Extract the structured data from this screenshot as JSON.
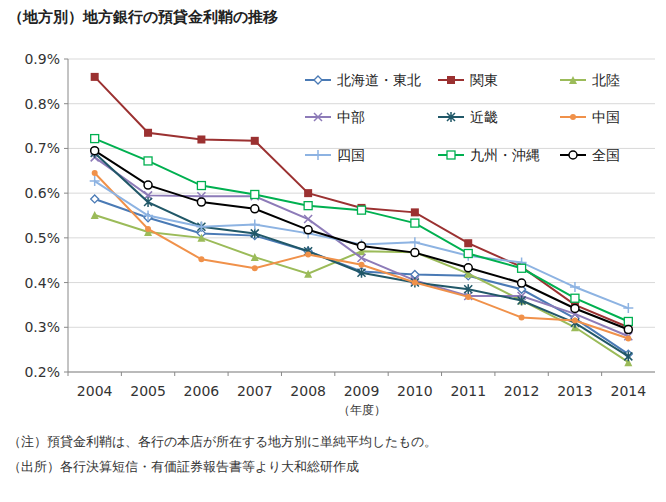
{
  "chart_data": {
    "type": "line",
    "title": "（地方別）地方銀行の預貸金利鞘の推移",
    "x_label": "（年度）",
    "notes": [
      "（注）預貸金利鞘は、各行の本店が所在する地方別に単純平均したもの。",
      "（出所）各行決算短信・有価証券報告書等より大和総研作成"
    ],
    "categories": [
      "2004",
      "2005",
      "2006",
      "2007",
      "2008",
      "2009",
      "2010",
      "2011",
      "2012",
      "2013",
      "2014"
    ],
    "ylim": [
      0.2,
      0.9
    ],
    "yticks": [
      {
        "value": 0.2,
        "label": "0.2%"
      },
      {
        "value": 0.3,
        "label": "0.3%"
      },
      {
        "value": 0.4,
        "label": "0.4%"
      },
      {
        "value": 0.5,
        "label": "0.5%"
      },
      {
        "value": 0.6,
        "label": "0.6%"
      },
      {
        "value": 0.7,
        "label": "0.7%"
      },
      {
        "value": 0.8,
        "label": "0.8%"
      },
      {
        "value": 0.9,
        "label": "0.9%"
      }
    ],
    "grid": true,
    "legend": "top-right",
    "series": [
      {
        "name": "北海道・東北",
        "color": "#4a7ab5",
        "marker": "diamond",
        "values": [
          0.587,
          0.545,
          0.51,
          0.505,
          0.47,
          0.425,
          0.418,
          0.415,
          0.385,
          0.32,
          0.24
        ]
      },
      {
        "name": "関東",
        "color": "#9b3131",
        "marker": "square",
        "values": [
          0.86,
          0.735,
          0.72,
          0.717,
          0.6,
          0.567,
          0.557,
          0.488,
          0.435,
          0.35,
          0.3
        ]
      },
      {
        "name": "北陸",
        "color": "#9bbb59",
        "marker": "triangle",
        "values": [
          0.551,
          0.513,
          0.5,
          0.457,
          0.42,
          0.47,
          0.468,
          0.42,
          0.36,
          0.3,
          0.222
        ]
      },
      {
        "name": "中部",
        "color": "#8d7bb8",
        "marker": "x",
        "values": [
          0.68,
          0.595,
          0.593,
          0.593,
          0.542,
          0.455,
          0.405,
          0.37,
          0.37,
          0.33,
          0.28
        ]
      },
      {
        "name": "近畿",
        "color": "#215868",
        "marker": "star",
        "values": [
          0.69,
          0.58,
          0.525,
          0.51,
          0.47,
          0.422,
          0.4,
          0.385,
          0.36,
          0.31,
          0.235
        ]
      },
      {
        "name": "中国",
        "color": "#f0914a",
        "marker": "circle",
        "values": [
          0.645,
          0.52,
          0.452,
          0.432,
          0.463,
          0.44,
          0.4,
          0.368,
          0.322,
          0.315,
          0.275
        ]
      },
      {
        "name": "四国",
        "color": "#8db3e2",
        "marker": "plus",
        "values": [
          0.627,
          0.55,
          0.525,
          0.53,
          0.51,
          0.485,
          0.49,
          0.46,
          0.445,
          0.39,
          0.343
        ]
      },
      {
        "name": "九州・沖縄",
        "color": "#00b050",
        "marker": "square-open",
        "values": [
          0.722,
          0.672,
          0.617,
          0.597,
          0.572,
          0.562,
          0.533,
          0.465,
          0.432,
          0.365,
          0.313
        ]
      },
      {
        "name": "全国",
        "color": "#000000",
        "marker": "circle-open",
        "values": [
          0.695,
          0.618,
          0.58,
          0.565,
          0.518,
          0.482,
          0.467,
          0.433,
          0.399,
          0.342,
          0.295
        ]
      }
    ]
  }
}
